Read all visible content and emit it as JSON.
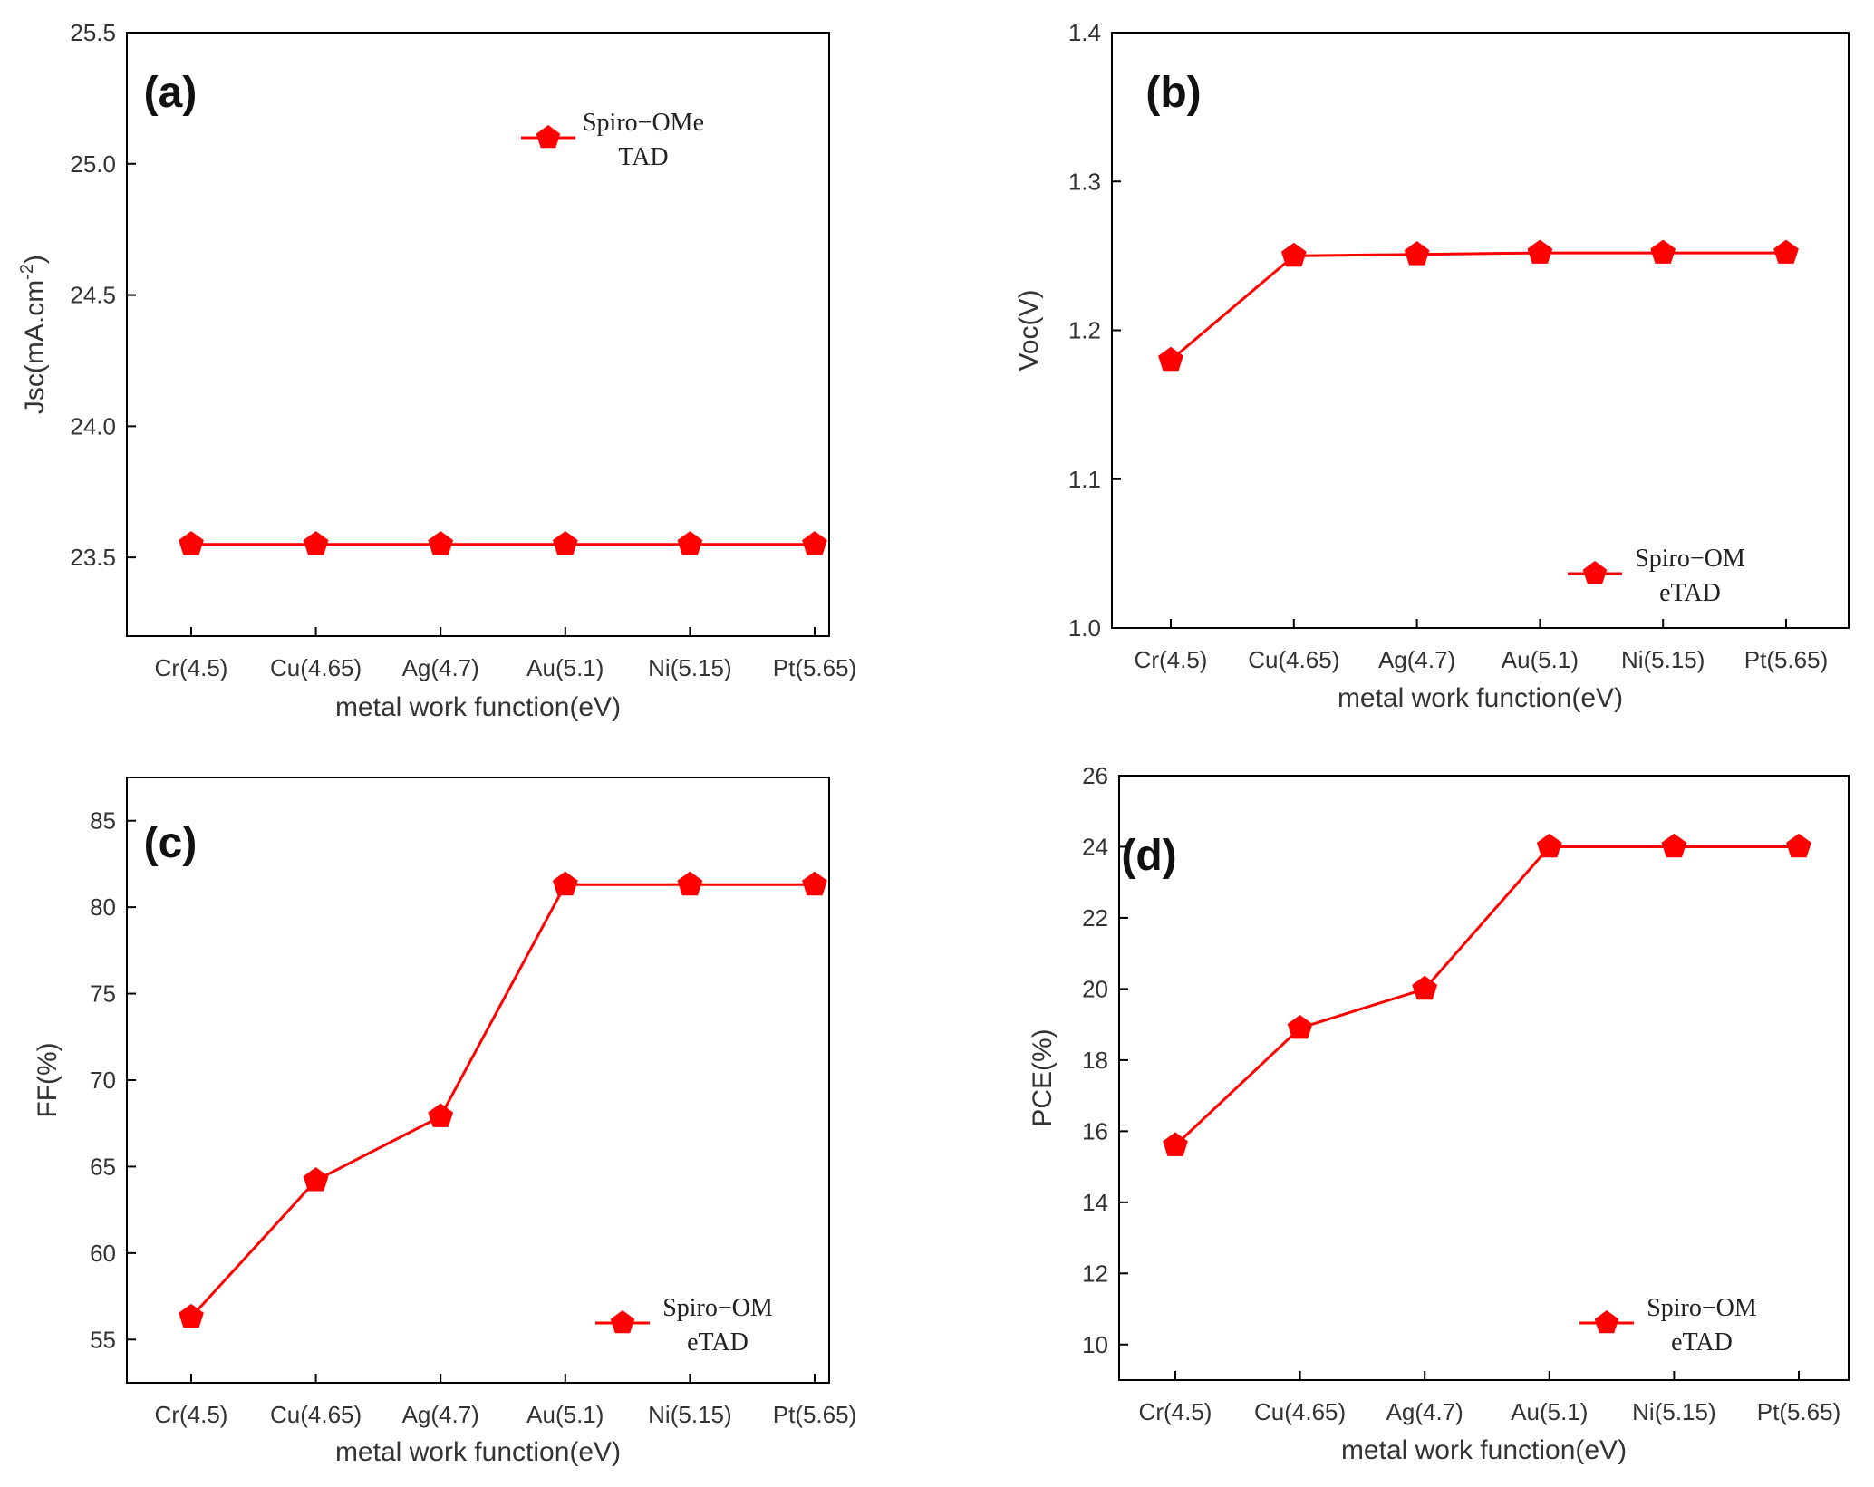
{
  "chart_data": [
    {
      "type": "line",
      "panel_label": "(a)",
      "categories": [
        "Cr(4.5)",
        "Cu(4.65)",
        "Ag(4.7)",
        "Au(5.1)",
        "Ni(5.15)",
        "Pt(5.65)"
      ],
      "series": [
        {
          "name": "Spiro-OMeTAD",
          "values": [
            23.55,
            23.55,
            23.55,
            23.55,
            23.55,
            23.55
          ]
        }
      ],
      "legend_lines": [
        "Spiro−OMe",
        "TAD"
      ],
      "legend_position": "top-right",
      "xlabel": "metal work function(eV)",
      "ylabel": "Jsc(mA.cm",
      "ylabel_sup": "-2",
      "ylabel_end": ")",
      "ylim": [
        23.2,
        25.5
      ],
      "yticks": [
        23.5,
        24.0,
        24.5,
        25.0,
        25.5
      ],
      "ytick_labels": [
        "23.5",
        "24.0",
        "24.5",
        "25.0",
        "25.5"
      ],
      "grid": false,
      "color": "#ff0000"
    },
    {
      "type": "line",
      "panel_label": "(b)",
      "categories": [
        "Cr(4.5)",
        "Cu(4.65)",
        "Ag(4.7)",
        "Au(5.1)",
        "Ni(5.15)",
        "Pt(5.65)"
      ],
      "series": [
        {
          "name": "Spiro-OMeTAD",
          "values": [
            1.18,
            1.25,
            1.251,
            1.252,
            1.252,
            1.252
          ]
        }
      ],
      "legend_lines": [
        "Spiro−OM",
        "eTAD"
      ],
      "legend_position": "bottom-right",
      "xlabel": "metal work function(eV)",
      "ylabel": "Voc(V)",
      "ylim": [
        1.0,
        1.4
      ],
      "yticks": [
        1.0,
        1.1,
        1.2,
        1.3,
        1.4
      ],
      "ytick_labels": [
        "1.0",
        "1.1",
        "1.2",
        "1.3",
        "1.4"
      ],
      "grid": false,
      "color": "#ff0000"
    },
    {
      "type": "line",
      "panel_label": "(c)",
      "categories": [
        "Cr(4.5)",
        "Cu(4.65)",
        "Ag(4.7)",
        "Au(5.1)",
        "Ni(5.15)",
        "Pt(5.65)"
      ],
      "series": [
        {
          "name": "Spiro-OMeTAD",
          "values": [
            56.3,
            64.2,
            67.9,
            81.3,
            81.3,
            81.3
          ]
        }
      ],
      "legend_lines": [
        "Spiro−OM",
        "eTAD"
      ],
      "legend_position": "bottom-right",
      "xlabel": "metal work function(eV)",
      "ylabel": "FF(%)",
      "ylim": [
        52.5,
        87.5
      ],
      "yticks": [
        55,
        60,
        65,
        70,
        75,
        80,
        85
      ],
      "ytick_labels": [
        "55",
        "60",
        "65",
        "70",
        "75",
        "80",
        "85"
      ],
      "grid": false,
      "color": "#ff0000"
    },
    {
      "type": "line",
      "panel_label": "(d)",
      "categories": [
        "Cr(4.5)",
        "Cu(4.65)",
        "Ag(4.7)",
        "Au(5.1)",
        "Ni(5.15)",
        "Pt(5.65)"
      ],
      "series": [
        {
          "name": "Spiro-OMeTAD",
          "values": [
            15.6,
            18.9,
            20.0,
            24.0,
            24.0,
            24.0
          ]
        }
      ],
      "legend_lines": [
        "Spiro−OM",
        "eTAD"
      ],
      "legend_position": "bottom-right",
      "xlabel": "metal work function(eV)",
      "ylabel": "PCE(%)",
      "ylim": [
        9,
        26
      ],
      "yticks": [
        10,
        12,
        14,
        16,
        18,
        20,
        22,
        24,
        26
      ],
      "ytick_labels": [
        "10",
        "12",
        "14",
        "16",
        "18",
        "20",
        "22",
        "24",
        "26"
      ],
      "grid": false,
      "color": "#ff0000"
    }
  ]
}
